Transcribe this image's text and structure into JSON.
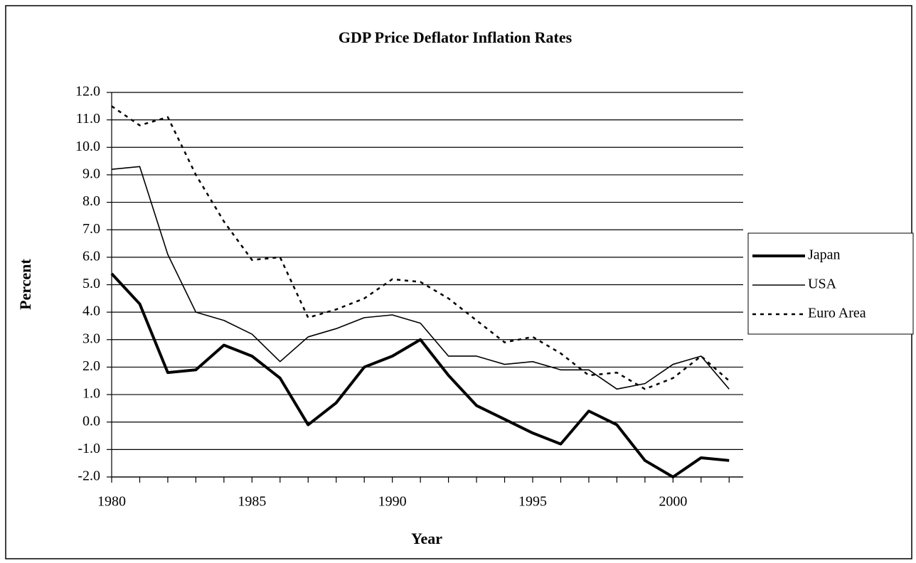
{
  "chart_data": {
    "type": "line",
    "title": "GDP Price Deflator Inflation Rates",
    "x_label": "Year",
    "y_label": "Percent",
    "x": [
      1980,
      1981,
      1982,
      1983,
      1984,
      1985,
      1986,
      1987,
      1988,
      1989,
      1990,
      1991,
      1992,
      1993,
      1994,
      1995,
      1996,
      1997,
      1998,
      1999,
      2000,
      2001,
      2002
    ],
    "series": [
      {
        "name": "Japan",
        "color": "#000000",
        "width": 4,
        "dash": "solid",
        "values": [
          5.4,
          4.3,
          1.8,
          1.9,
          2.8,
          2.4,
          1.6,
          -0.1,
          0.7,
          2.0,
          2.4,
          3.0,
          1.7,
          0.6,
          0.1,
          -0.4,
          -0.8,
          0.4,
          -0.1,
          -1.4,
          -2.0,
          -1.3,
          -1.4
        ]
      },
      {
        "name": "USA",
        "color": "#000000",
        "width": 1.6,
        "dash": "solid",
        "values": [
          9.2,
          9.3,
          6.1,
          4.0,
          3.7,
          3.2,
          2.2,
          3.1,
          3.4,
          3.8,
          3.9,
          3.6,
          2.4,
          2.4,
          2.1,
          2.2,
          1.9,
          1.9,
          1.2,
          1.4,
          2.1,
          2.4,
          1.2
        ]
      },
      {
        "name": "Euro Area",
        "color": "#000000",
        "width": 2.5,
        "dash": "dotted",
        "values": [
          11.5,
          10.8,
          11.1,
          9.0,
          7.3,
          5.9,
          6.0,
          3.8,
          4.1,
          4.5,
          5.2,
          5.1,
          4.5,
          3.7,
          2.9,
          3.1,
          2.5,
          1.7,
          1.8,
          1.2,
          1.6,
          2.4,
          1.5
        ]
      }
    ],
    "xlim": [
      1980,
      2002.5
    ],
    "xticks": [
      1980,
      1985,
      1990,
      1995,
      2000
    ],
    "x_minor_ticks": [
      1980,
      1981,
      1982,
      1983,
      1984,
      1985,
      1986,
      1987,
      1988,
      1989,
      1990,
      1991,
      1992,
      1993,
      1994,
      1995,
      1996,
      1997,
      1998,
      1999,
      2000,
      2001,
      2002
    ],
    "ylim": [
      -2,
      12
    ],
    "yticks": [
      {
        "value": -2,
        "label": "-2.0"
      },
      {
        "value": -1,
        "label": "-1.0"
      },
      {
        "value": 0,
        "label": "0.0"
      },
      {
        "value": 1,
        "label": "1.0"
      },
      {
        "value": 2,
        "label": "2.0"
      },
      {
        "value": 3,
        "label": "3.0"
      },
      {
        "value": 4,
        "label": "4.0"
      },
      {
        "value": 5,
        "label": "5.0"
      },
      {
        "value": 6,
        "label": "6.0"
      },
      {
        "value": 7,
        "label": "7.0"
      },
      {
        "value": 8,
        "label": "8.0"
      },
      {
        "value": 9,
        "label": "9.0"
      },
      {
        "value": 10,
        "label": "10.0"
      },
      {
        "value": 11,
        "label": "11.0"
      },
      {
        "value": 12,
        "label": "12.0"
      }
    ],
    "grid": true,
    "legend": "right"
  }
}
